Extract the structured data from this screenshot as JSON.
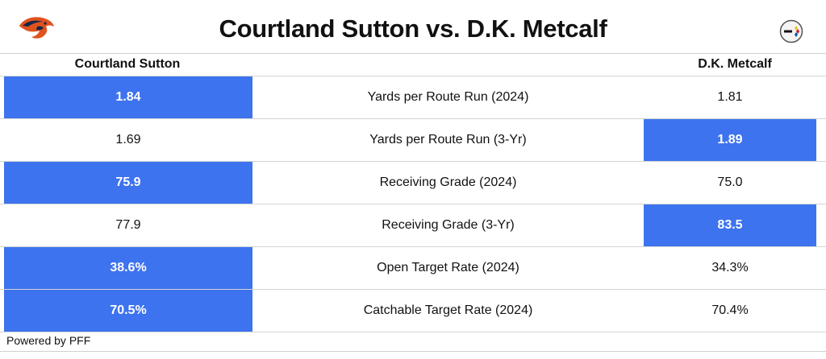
{
  "title": "Courtland Sutton vs. D.K. Metcalf",
  "left_team_logo": "broncos-logo",
  "right_team_logo": "steelers-logo",
  "columns": {
    "left": "Courtland Sutton",
    "right": "D.K. Metcalf"
  },
  "highlight_color": "#3d73ee",
  "rows": [
    {
      "metric": "Yards per Route Run (2024)",
      "left": "1.84",
      "right": "1.81",
      "leader": "left"
    },
    {
      "metric": "Yards per Route Run (3-Yr)",
      "left": "1.69",
      "right": "1.89",
      "leader": "right"
    },
    {
      "metric": "Receiving Grade (2024)",
      "left": "75.9",
      "right": "75.0",
      "leader": "left"
    },
    {
      "metric": "Receiving Grade (3-Yr)",
      "left": "77.9",
      "right": "83.5",
      "leader": "right"
    },
    {
      "metric": "Open Target Rate (2024)",
      "left": "38.6%",
      "right": "34.3%",
      "leader": "left"
    },
    {
      "metric": "Catchable Target Rate (2024)",
      "left": "70.5%",
      "right": "70.4%",
      "leader": "left"
    }
  ],
  "footer": "Powered by PFF"
}
